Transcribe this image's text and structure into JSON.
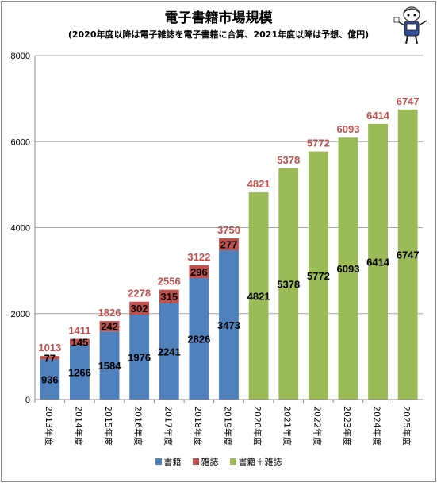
{
  "chart_data": {
    "type": "bar",
    "stacked": true,
    "title": "電子書籍市場規模",
    "subtitle": "(2020年度以降は電子雑誌を電子書籍に合算、2021年度以降は予想、億円)",
    "categories": [
      "2013年度",
      "2014年度",
      "2015年度",
      "2016年度",
      "2017年度",
      "2018年度",
      "2019年度",
      "2020年度",
      "2021年度",
      "2022年度",
      "2023年度",
      "2024年度",
      "2025年度"
    ],
    "series": [
      {
        "name": "書籍",
        "color": "#4f81bd",
        "values": [
          936,
          1266,
          1584,
          1976,
          2241,
          2826,
          3473,
          null,
          null,
          null,
          null,
          null,
          null
        ]
      },
      {
        "name": "雑誌",
        "color": "#c0504d",
        "values": [
          77,
          145,
          242,
          302,
          315,
          296,
          277,
          null,
          null,
          null,
          null,
          null,
          null
        ]
      },
      {
        "name": "書籍＋雑誌",
        "color": "#9bbb59",
        "values": [
          null,
          null,
          null,
          null,
          null,
          null,
          null,
          4821,
          5378,
          5772,
          6093,
          6414,
          6747
        ]
      }
    ],
    "totals": [
      1013,
      1411,
      1826,
      2278,
      2556,
      3122,
      3750,
      4821,
      5378,
      5772,
      6093,
      6414,
      6747
    ],
    "total_label_color": "#c0504d",
    "ylim": [
      0,
      8000
    ],
    "yticks": [
      "0",
      "2000",
      "4000",
      "6000",
      "8000"
    ],
    "grid": true,
    "legend_position": "bottom"
  }
}
